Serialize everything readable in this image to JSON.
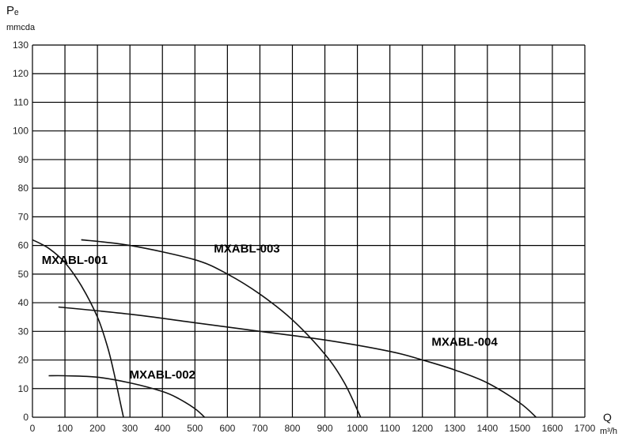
{
  "chart_data": {
    "type": "line",
    "y_title": "Pₑ",
    "y_unit": "mmcda",
    "x_title": "Q",
    "x_unit": "m³/h",
    "xlim": [
      0,
      1700
    ],
    "ylim": [
      0,
      130
    ],
    "grid": true,
    "x_ticks": [
      "0",
      "100",
      "200",
      "300",
      "400",
      "500",
      "600",
      "700",
      "800",
      "900",
      "1000",
      "1100",
      "1200",
      "1300",
      "1400",
      "1500",
      "1600",
      "1700"
    ],
    "y_ticks": [
      "0",
      "10",
      "20",
      "30",
      "40",
      "50",
      "60",
      "70",
      "80",
      "90",
      "100",
      "110",
      "120",
      "130"
    ],
    "series": [
      {
        "name": "MXABL-001",
        "points": [
          [
            0,
            62
          ],
          [
            50,
            59
          ],
          [
            100,
            54
          ],
          [
            150,
            46
          ],
          [
            200,
            35
          ],
          [
            230,
            25
          ],
          [
            250,
            16
          ],
          [
            265,
            8
          ],
          [
            280,
            0
          ]
        ]
      },
      {
        "name": "MXABL-002",
        "points": [
          [
            50,
            14.5
          ],
          [
            100,
            14.5
          ],
          [
            200,
            14
          ],
          [
            300,
            12
          ],
          [
            400,
            9
          ],
          [
            450,
            6.5
          ],
          [
            500,
            3
          ],
          [
            530,
            0
          ]
        ]
      },
      {
        "name": "MXABL-003",
        "points": [
          [
            150,
            62
          ],
          [
            300,
            60
          ],
          [
            500,
            55
          ],
          [
            600,
            50
          ],
          [
            700,
            43
          ],
          [
            800,
            34
          ],
          [
            900,
            22
          ],
          [
            960,
            12
          ],
          [
            1010,
            0
          ]
        ]
      },
      {
        "name": "MXABL-004",
        "points": [
          [
            80,
            38.5
          ],
          [
            300,
            36
          ],
          [
            500,
            33
          ],
          [
            700,
            30
          ],
          [
            900,
            27
          ],
          [
            1100,
            23
          ],
          [
            1200,
            20
          ],
          [
            1300,
            16.5
          ],
          [
            1400,
            12
          ],
          [
            1500,
            5
          ],
          [
            1550,
            0
          ]
        ]
      }
    ],
    "labels": [
      {
        "text": "MXABL-001",
        "x": 130,
        "y": 53.5
      },
      {
        "text": "MXABL-002",
        "x": 400,
        "y": 13.5
      },
      {
        "text": "MXABL-003",
        "x": 660,
        "y": 57.5
      },
      {
        "text": "MXABL-004",
        "x": 1330,
        "y": 25
      }
    ]
  }
}
